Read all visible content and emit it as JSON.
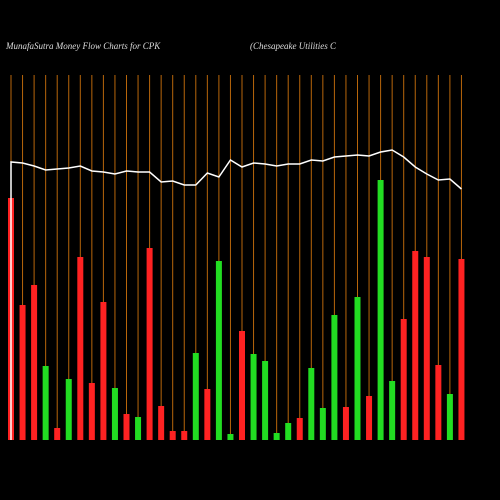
{
  "chart_data": {
    "type": "bar",
    "title": "MunafaSutra  Money Flow  Charts for CPK",
    "subtitle": "(Chesapeake   Utilities C",
    "values": [
      242,
      135,
      155,
      74,
      12,
      61,
      183,
      57,
      138,
      52,
      26,
      23,
      192,
      34,
      9,
      9,
      87,
      51,
      179,
      6,
      109,
      86,
      79,
      7,
      17,
      22,
      72,
      32,
      125,
      33,
      143,
      44,
      260,
      59,
      121,
      189,
      183,
      75,
      46,
      181
    ],
    "bar_colors": [
      "#ff2222",
      "#ff2222",
      "#ff2222",
      "#22dd22",
      "#ff2222",
      "#22dd22",
      "#ff2222",
      "#ff2222",
      "#ff2222",
      "#22dd22",
      "#ff2222",
      "#22dd22",
      "#ff2222",
      "#ff2222",
      "#ff2222",
      "#ff2222",
      "#22dd22",
      "#ff2222",
      "#22dd22",
      "#22dd22",
      "#ff2222",
      "#22dd22",
      "#22dd22",
      "#22dd22",
      "#22dd22",
      "#ff2222",
      "#22dd22",
      "#22dd22",
      "#22dd22",
      "#ff2222",
      "#22dd22",
      "#ff2222",
      "#22dd22",
      "#22dd22",
      "#ff2222",
      "#ff2222",
      "#ff2222",
      "#ff2222",
      "#22dd22",
      "#ff2222"
    ],
    "line_values": [
      338,
      337,
      334,
      330,
      331,
      332,
      334,
      329,
      328,
      326,
      329,
      328,
      328,
      318,
      319,
      315,
      315,
      327,
      323,
      340,
      333,
      337,
      336,
      334,
      336,
      336,
      340,
      339,
      343,
      344,
      345,
      344,
      348,
      350,
      343,
      333,
      326,
      320,
      321,
      311
    ],
    "line_color": "#ffffff",
    "grid_color": "#b8660b"
  }
}
